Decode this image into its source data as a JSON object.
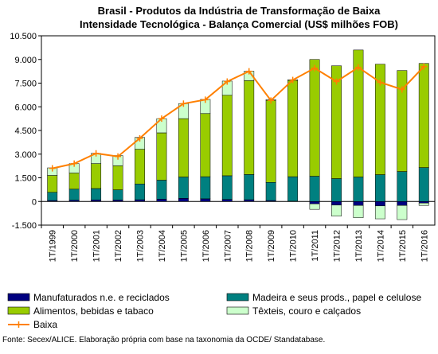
{
  "chart_data": {
    "type": "bar",
    "stacked": true,
    "title": "Brasil - Produtos da Indústria de Transformação de Baixa",
    "subtitle": "Intensidade Tecnológica - Balança Comercial (US$ milhões FOB)",
    "categories": [
      "1T/1999",
      "1T/2000",
      "1T/2001",
      "1T/2002",
      "1T/2003",
      "1T/2004",
      "1T/2005",
      "1T/2006",
      "1T/2007",
      "1T/2008",
      "1T/2009",
      "1T/2010",
      "1T/2011",
      "1T/2012",
      "1T/2013",
      "1T/2014",
      "1T/2015",
      "1T/2016"
    ],
    "ylim": [
      -1500,
      10500
    ],
    "yticks": [
      -1500,
      0,
      1500,
      3000,
      4500,
      6000,
      7500,
      9000,
      10500
    ],
    "ytick_labels": [
      "-1.500",
      "0",
      "1.500",
      "3.000",
      "4.500",
      "6.000",
      "7.500",
      "9.000",
      "10.500"
    ],
    "grid": false,
    "legend_position": "bottom",
    "series": [
      {
        "name": "Manufaturados n.e. e reciclados",
        "color": "#000080",
        "type": "bar",
        "values": [
          60,
          80,
          100,
          90,
          110,
          150,
          200,
          170,
          130,
          110,
          60,
          20,
          -150,
          -230,
          -250,
          -280,
          -250,
          -100
        ]
      },
      {
        "name": "Madeira e seus prods., papel e celulose",
        "color": "#008080",
        "type": "bar",
        "values": [
          520,
          700,
          720,
          650,
          1000,
          1200,
          1350,
          1400,
          1500,
          1600,
          1150,
          1550,
          1600,
          1450,
          1550,
          1700,
          1900,
          2150
        ]
      },
      {
        "name": "Alimentos, bebidas e tabaco",
        "color": "#99CC00",
        "type": "bar",
        "values": [
          1070,
          1020,
          1580,
          1520,
          2200,
          3000,
          3700,
          4000,
          5100,
          5950,
          5200,
          6100,
          7400,
          7150,
          8050,
          7000,
          6400,
          6600
        ]
      },
      {
        "name": "Têxteis, couro e calçados",
        "color": "#CCFFCC",
        "type": "bar",
        "values": [
          480,
          600,
          650,
          650,
          750,
          900,
          950,
          900,
          900,
          600,
          50,
          50,
          -350,
          -700,
          -780,
          -820,
          -900,
          -150
        ]
      },
      {
        "name": "Baixa",
        "color": "#FF8000",
        "type": "line",
        "values": [
          2100,
          2400,
          3050,
          2850,
          4000,
          5250,
          6200,
          6450,
          7600,
          8250,
          6400,
          7700,
          8450,
          7600,
          8500,
          7550,
          7100,
          8550
        ]
      }
    ],
    "source": "Fonte: Secex/ALICE. Elaboração própria com base na taxonomia da OCDE/ Standatabase."
  }
}
